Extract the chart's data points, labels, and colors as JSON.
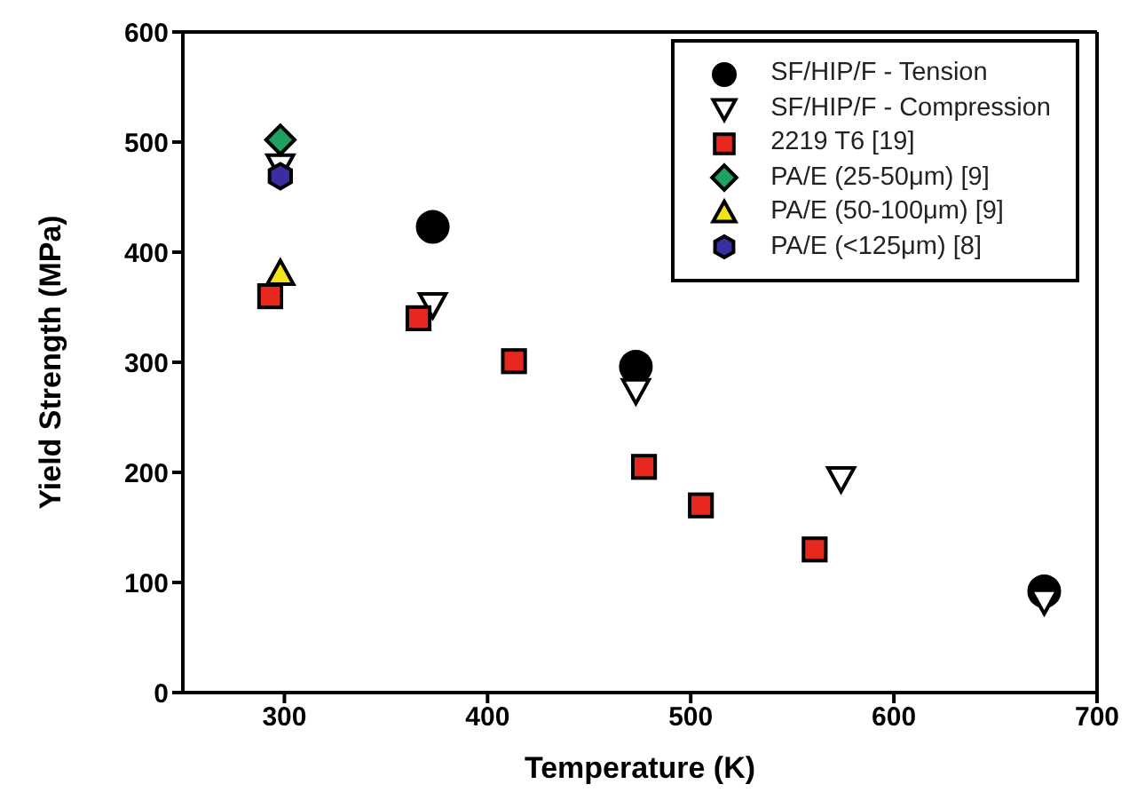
{
  "chart_data": {
    "type": "scatter",
    "xlabel": "Temperature (K)",
    "ylabel": "Yield Strength (MPa)",
    "xlim": [
      250,
      700
    ],
    "xticks": [
      300,
      400,
      500,
      600,
      700
    ],
    "ylim": [
      0,
      600
    ],
    "yticks": [
      0,
      100,
      200,
      300,
      400,
      500,
      600
    ],
    "grid": false,
    "legend": "top right",
    "series": [
      {
        "name": "SF/HIP/F - Tension",
        "color": "#000000",
        "marker": "circle",
        "x": [
          373,
          473,
          674
        ],
        "values": [
          423,
          296,
          92
        ]
      },
      {
        "name": "SF/HIP/F - Compression",
        "color": "#ffffff",
        "marker": "triangle-down",
        "x": [
          298,
          373,
          473,
          574,
          674
        ],
        "values": [
          479,
          353,
          275,
          195,
          84
        ]
      },
      {
        "name": "2219 T6 [19]",
        "color": "#e8281e",
        "marker": "square",
        "x": [
          293,
          366,
          413,
          477,
          505,
          561
        ],
        "values": [
          360,
          340,
          301,
          205,
          170,
          130
        ]
      },
      {
        "name": "PA/E (25-50μm) [9]",
        "color": "#1fa060",
        "marker": "diamond",
        "x": [
          298
        ],
        "values": [
          502
        ]
      },
      {
        "name": "PA/E (50-100μm) [9]",
        "color": "#f5e31a",
        "marker": "triangle",
        "x": [
          298
        ],
        "values": [
          380
        ]
      },
      {
        "name": "PA/E (<125μm) [8]",
        "color": "#3b2ea0",
        "x": [
          298
        ],
        "values": [
          469
        ]
      }
    ]
  }
}
